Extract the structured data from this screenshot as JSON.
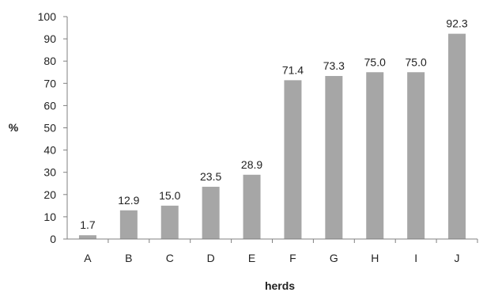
{
  "chart_data": {
    "type": "bar",
    "title": "",
    "xlabel": "herds",
    "ylabel": "%",
    "categories": [
      "A",
      "B",
      "C",
      "D",
      "E",
      "F",
      "G",
      "H",
      "I",
      "J"
    ],
    "values": [
      1.7,
      12.9,
      15.0,
      23.5,
      28.9,
      71.4,
      73.3,
      75.0,
      75.0,
      92.3
    ],
    "data_labels": [
      "1.7",
      "12.9",
      "15.0",
      "23.5",
      "28.9",
      "71.4",
      "73.3",
      "75.0",
      "75.0",
      "92.3"
    ],
    "ylim": [
      0,
      100
    ],
    "yticks": [
      0,
      10,
      20,
      30,
      40,
      50,
      60,
      70,
      80,
      90,
      100
    ],
    "ytick_labels": [
      "0",
      "10",
      "20",
      "30",
      "40",
      "50",
      "60",
      "70",
      "80",
      "90",
      "100"
    ],
    "grid": false,
    "legend": "none",
    "colors": {
      "bar": "#a6a6a6",
      "axis": "#808080",
      "text": "#222222"
    }
  }
}
